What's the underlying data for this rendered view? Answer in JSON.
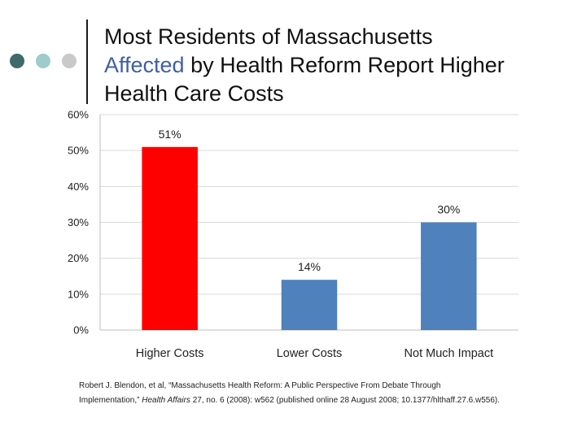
{
  "title": {
    "part1": "Most Residents of Massachusetts",
    "highlight": "Affected",
    "part2": " by Health Reform Report Higher Health Care Costs"
  },
  "decor": {
    "title_dots_colors": [
      "#3d6b6b",
      "#9fcbcc",
      "#c9c9c9"
    ],
    "title_rule_color": "#1a1a1a",
    "highlight_color": "#3f5fa8"
  },
  "chart_data": {
    "type": "bar",
    "categories": [
      "Higher Costs",
      "Lower Costs",
      "Not Much Impact"
    ],
    "values": [
      51,
      14,
      30
    ],
    "data_labels": [
      "51%",
      "14%",
      "30%"
    ],
    "bar_colors": [
      "#ff0000",
      "#4f81bd",
      "#4f81bd"
    ],
    "ylim": [
      0,
      60
    ],
    "yticks": [
      0,
      10,
      20,
      30,
      40,
      50,
      60
    ],
    "ytick_labels": [
      "0%",
      "10%",
      "20%",
      "30%",
      "40%",
      "50%",
      "60%"
    ],
    "grid": true,
    "legend": "none",
    "xlabel": "",
    "ylabel": ""
  },
  "citation": {
    "before_journal": "Robert J. Blendon, et al, “Massachusetts Health Reform: A Public Perspective From Debate Through Implementation,” ",
    "journal": "Health Affairs",
    "after_journal": " 27, no. 6 (2008): w562 (published online 28 August 2008; 10.1377/hlthaff.27.6.w556)."
  }
}
